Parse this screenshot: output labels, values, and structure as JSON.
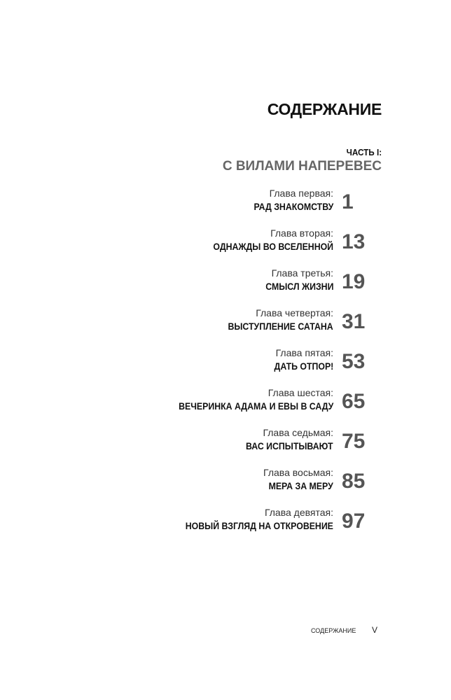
{
  "title": "СОДЕРЖАНИЕ",
  "part": {
    "label": "ЧАСТЬ I:",
    "title": "С ВИЛАМИ НАПЕРЕВЕС"
  },
  "chapters": [
    {
      "label": "Глава первая:",
      "title": "РАД ЗНАКОМСТВУ",
      "page": "1"
    },
    {
      "label": "Глава вторая:",
      "title": "ОДНАЖДЫ ВО ВСЕЛЕННОЙ",
      "page": "13"
    },
    {
      "label": "Глава третья:",
      "title": "СМЫСЛ ЖИЗНИ",
      "page": "19"
    },
    {
      "label": "Глава четвертая:",
      "title": "ВЫСТУПЛЕНИЕ САТАНА",
      "page": "31"
    },
    {
      "label": "Глава пятая:",
      "title": "ДАТЬ ОТПОР!",
      "page": "53"
    },
    {
      "label": "Глава шестая:",
      "title": "ВЕЧЕРИНКА АДАМА И ЕВЫ В САДУ",
      "page": "65"
    },
    {
      "label": "Глава седьмая:",
      "title": "ВАС ИСПЫТЫВАЮТ",
      "page": "75"
    },
    {
      "label": "Глава восьмая:",
      "title": "МЕРА ЗА МЕРУ",
      "page": "85"
    },
    {
      "label": "Глава девятая:",
      "title": "НОВЫЙ ВЗГЛЯД НА ОТКРОВЕНИЕ",
      "page": "97"
    }
  ],
  "footer": {
    "label": "СОДЕРЖАНИЕ",
    "page": "V"
  }
}
